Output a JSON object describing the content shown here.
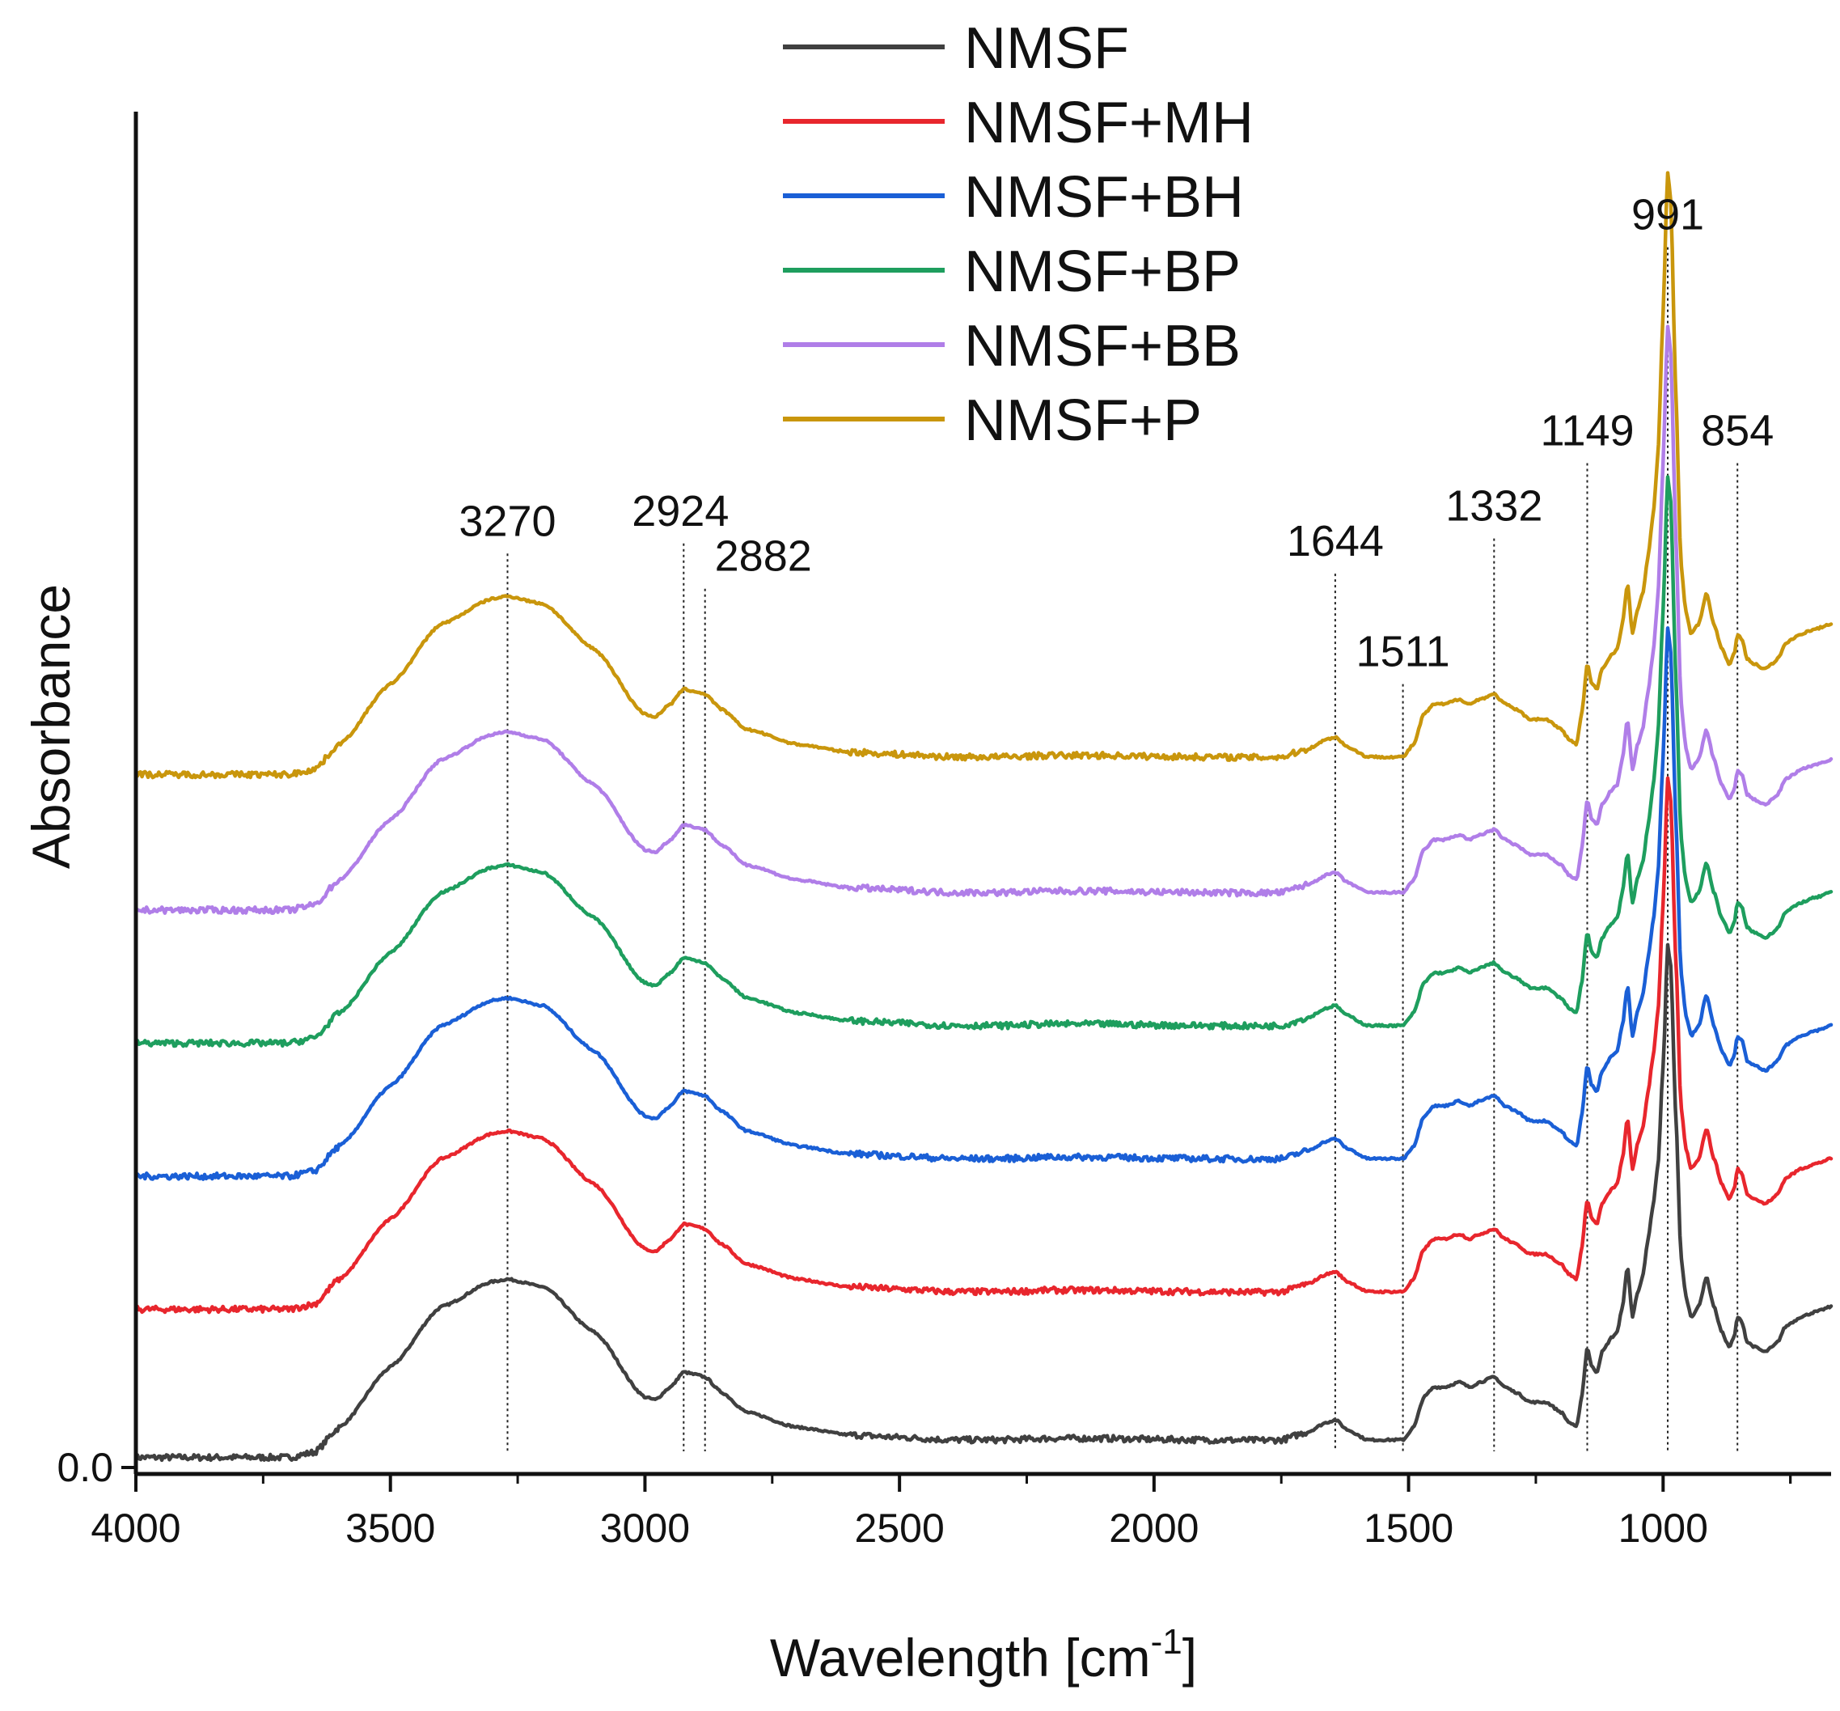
{
  "chart_data": {
    "type": "line",
    "title": "",
    "xlabel": "Wavelength [cm",
    "xlabel_sup": "-1",
    "xlabel_end": "]",
    "ylabel": "Absorbance",
    "xlim": [
      4000,
      670
    ],
    "x_reversed": true,
    "ylim": [
      0,
      2.7
    ],
    "x_ticks": [
      4000,
      3500,
      3000,
      2500,
      2000,
      1500,
      1000
    ],
    "x_tick_labels": [
      "4000",
      "3500",
      "3000",
      "2500",
      "2000",
      "1500",
      "1000"
    ],
    "y_ticks": [
      0.0
    ],
    "y_tick_labels": [
      "0.0"
    ],
    "grid": false,
    "legend_position": "top-center",
    "peak_annotations": [
      {
        "x": 3270,
        "label": "3270",
        "y_top": 1.82
      },
      {
        "x": 2924,
        "label": "2924",
        "y_top": 1.84
      },
      {
        "x": 2882,
        "label": "2882",
        "y_top": 1.75
      },
      {
        "x": 1644,
        "label": "1644",
        "y_top": 1.78
      },
      {
        "x": 1511,
        "label": "1511",
        "y_top": 1.56
      },
      {
        "x": 1332,
        "label": "1332",
        "y_top": 1.85
      },
      {
        "x": 1149,
        "label": "1149",
        "y_top": 2.0
      },
      {
        "x": 991,
        "label": "991",
        "y_top": 2.43
      },
      {
        "x": 854,
        "label": "854",
        "y_top": 2.0
      }
    ],
    "series": [
      {
        "name": "NMSF",
        "color": "#404040",
        "offset": 0.0
      },
      {
        "name": "NMSF+MH",
        "color": "#e8262d",
        "offset": 0.295
      },
      {
        "name": "NMSF+BH",
        "color": "#1a5fd6",
        "offset": 0.56
      },
      {
        "name": "NMSF+BP",
        "color": "#1e9e5e",
        "offset": 0.825
      },
      {
        "name": "NMSF+BB",
        "color": "#b07ee8",
        "offset": 1.09
      },
      {
        "name": "NMSF+P",
        "color": "#c9960c",
        "offset": 1.36
      }
    ],
    "base_spectrum": {
      "x": [
        4000,
        3900,
        3800,
        3700,
        3650,
        3600,
        3500,
        3400,
        3300,
        3270,
        3200,
        3100,
        3000,
        2980,
        2950,
        2924,
        2900,
        2882,
        2850,
        2800,
        2700,
        2600,
        2500,
        2400,
        2360,
        2300,
        2200,
        2100,
        2000,
        1900,
        1800,
        1750,
        1700,
        1660,
        1644,
        1620,
        1580,
        1540,
        1511,
        1490,
        1470,
        1450,
        1430,
        1400,
        1380,
        1360,
        1332,
        1310,
        1290,
        1260,
        1230,
        1200,
        1185,
        1170,
        1160,
        1149,
        1140,
        1130,
        1120,
        1100,
        1090,
        1080,
        1070,
        1060,
        1050,
        1040,
        1030,
        1020,
        1010,
        1000,
        991,
        985,
        975,
        965,
        955,
        945,
        930,
        915,
        900,
        885,
        870,
        860,
        854,
        845,
        835,
        820,
        800,
        785,
        775,
        760,
        745,
        730,
        700,
        670
      ],
      "y": [
        0.02,
        0.02,
        0.02,
        0.02,
        0.03,
        0.08,
        0.2,
        0.32,
        0.37,
        0.375,
        0.36,
        0.27,
        0.14,
        0.135,
        0.16,
        0.19,
        0.185,
        0.18,
        0.15,
        0.11,
        0.08,
        0.065,
        0.06,
        0.055,
        0.055,
        0.055,
        0.058,
        0.058,
        0.056,
        0.055,
        0.054,
        0.055,
        0.07,
        0.09,
        0.095,
        0.075,
        0.055,
        0.055,
        0.055,
        0.08,
        0.14,
        0.16,
        0.16,
        0.17,
        0.16,
        0.17,
        0.18,
        0.16,
        0.15,
        0.13,
        0.13,
        0.11,
        0.09,
        0.08,
        0.14,
        0.24,
        0.2,
        0.19,
        0.23,
        0.26,
        0.27,
        0.32,
        0.4,
        0.3,
        0.35,
        0.38,
        0.45,
        0.52,
        0.6,
        0.8,
        1.04,
        1.0,
        0.7,
        0.42,
        0.34,
        0.3,
        0.32,
        0.38,
        0.32,
        0.27,
        0.24,
        0.26,
        0.3,
        0.29,
        0.25,
        0.24,
        0.23,
        0.24,
        0.25,
        0.28,
        0.29,
        0.3,
        0.31,
        0.32
      ]
    }
  },
  "legend": {
    "entries": [
      {
        "label": "NMSF",
        "color": "#404040"
      },
      {
        "label": "NMSF+MH",
        "color": "#e8262d"
      },
      {
        "label": "NMSF+BH",
        "color": "#1a5fd6"
      },
      {
        "label": "NMSF+BP",
        "color": "#1e9e5e"
      },
      {
        "label": "NMSF+BB",
        "color": "#b07ee8"
      },
      {
        "label": "NMSF+P",
        "color": "#c9960c"
      }
    ]
  }
}
